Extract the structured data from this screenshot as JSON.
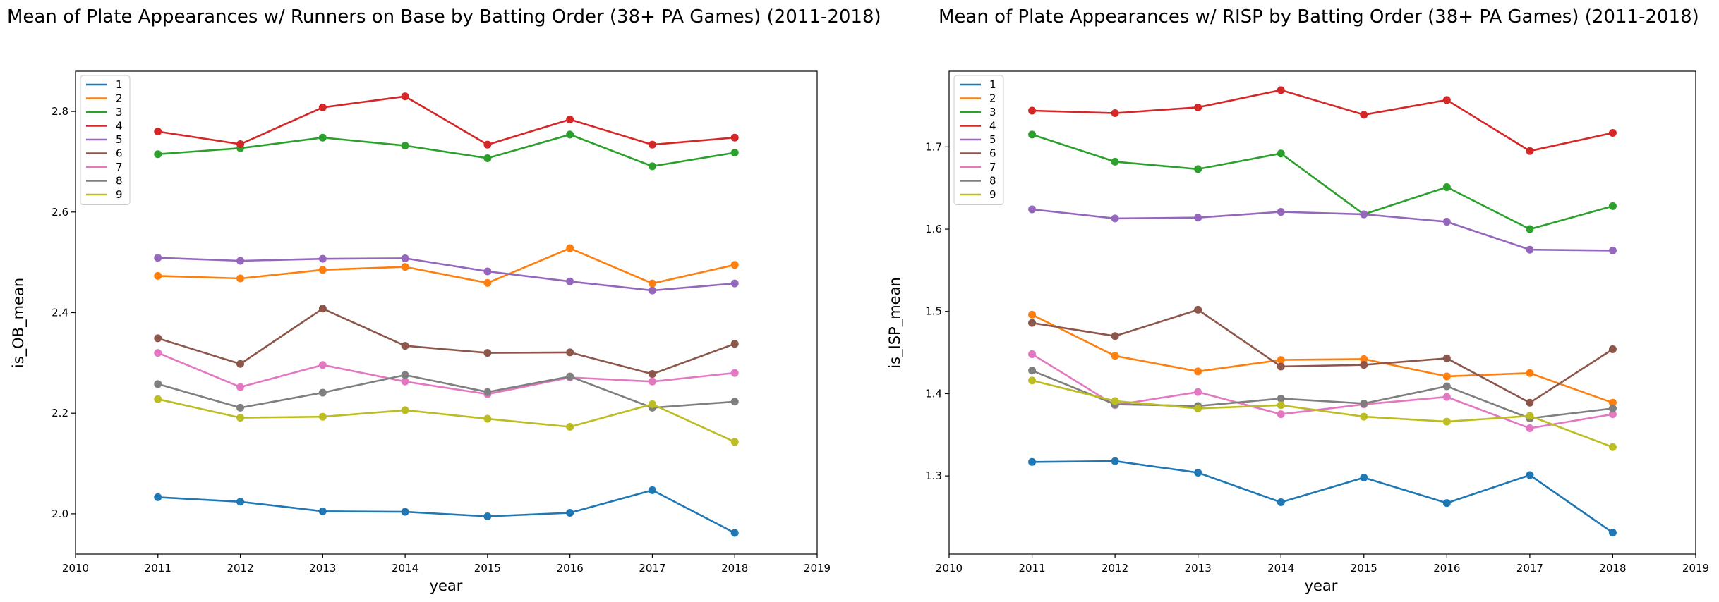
{
  "chart_data": [
    {
      "type": "line",
      "title": "Mean of Plate Appearances w/ Runners on Base by Batting Order (38+ PA Games) (2011-2018)",
      "xlabel": "year",
      "ylabel": "is_OB_mean",
      "xlim": [
        2010,
        2019
      ],
      "ylim": [
        1.92,
        2.88
      ],
      "xticks": [
        2010,
        2011,
        2012,
        2013,
        2014,
        2015,
        2016,
        2017,
        2018,
        2019
      ],
      "yticks": [
        "2.0",
        "2.2",
        "2.4",
        "2.6",
        "2.8"
      ],
      "yticks_values": [
        2.0,
        2.2,
        2.4,
        2.6,
        2.8
      ],
      "grid": false,
      "legend": "top-left",
      "x": [
        2011,
        2012,
        2013,
        2014,
        2015,
        2016,
        2017,
        2018
      ],
      "series": [
        {
          "name": "1",
          "color": "#1f77b4",
          "values": [
            2.033,
            2.024,
            2.005,
            2.004,
            1.995,
            2.002,
            2.047,
            1.962
          ]
        },
        {
          "name": "2",
          "color": "#ff7f0e",
          "values": [
            2.473,
            2.468,
            2.485,
            2.491,
            2.459,
            2.528,
            2.458,
            2.495
          ]
        },
        {
          "name": "3",
          "color": "#2ca02c",
          "values": [
            2.715,
            2.727,
            2.748,
            2.732,
            2.707,
            2.754,
            2.691,
            2.718
          ]
        },
        {
          "name": "4",
          "color": "#d62728",
          "values": [
            2.76,
            2.735,
            2.808,
            2.83,
            2.734,
            2.784,
            2.734,
            2.748
          ]
        },
        {
          "name": "5",
          "color": "#9467bd",
          "values": [
            2.509,
            2.503,
            2.507,
            2.508,
            2.482,
            2.462,
            2.444,
            2.458
          ]
        },
        {
          "name": "6",
          "color": "#8c564b",
          "values": [
            2.349,
            2.298,
            2.408,
            2.334,
            2.32,
            2.321,
            2.278,
            2.338
          ]
        },
        {
          "name": "7",
          "color": "#e377c2",
          "values": [
            2.32,
            2.252,
            2.296,
            2.263,
            2.238,
            2.271,
            2.263,
            2.28
          ]
        },
        {
          "name": "8",
          "color": "#7f7f7f",
          "values": [
            2.258,
            2.211,
            2.241,
            2.276,
            2.242,
            2.273,
            2.211,
            2.223
          ]
        },
        {
          "name": "9",
          "color": "#bcbd22",
          "values": [
            2.228,
            2.191,
            2.193,
            2.206,
            2.189,
            2.173,
            2.218,
            2.143
          ]
        }
      ]
    },
    {
      "type": "line",
      "title": "Mean of Plate Appearances w/ RISP by Batting Order (38+ PA Games) (2011-2018)",
      "xlabel": "year",
      "ylabel": "is_ISP_mean",
      "xlim": [
        2010,
        2019
      ],
      "ylim": [
        1.205,
        1.792
      ],
      "xticks": [
        2010,
        2011,
        2012,
        2013,
        2014,
        2015,
        2016,
        2017,
        2018,
        2019
      ],
      "yticks": [
        "1.3",
        "1.4",
        "1.5",
        "1.6",
        "1.7"
      ],
      "yticks_values": [
        1.3,
        1.4,
        1.5,
        1.6,
        1.7
      ],
      "grid": false,
      "legend": "top-left",
      "x": [
        2011,
        2012,
        2013,
        2014,
        2015,
        2016,
        2017,
        2018
      ],
      "series": [
        {
          "name": "1",
          "color": "#1f77b4",
          "values": [
            1.317,
            1.318,
            1.304,
            1.268,
            1.298,
            1.267,
            1.301,
            1.231
          ]
        },
        {
          "name": "2",
          "color": "#ff7f0e",
          "values": [
            1.496,
            1.446,
            1.427,
            1.441,
            1.442,
            1.421,
            1.425,
            1.389
          ]
        },
        {
          "name": "3",
          "color": "#2ca02c",
          "values": [
            1.715,
            1.682,
            1.673,
            1.692,
            1.618,
            1.651,
            1.6,
            1.628
          ]
        },
        {
          "name": "4",
          "color": "#d62728",
          "values": [
            1.744,
            1.741,
            1.748,
            1.769,
            1.739,
            1.757,
            1.695,
            1.717
          ]
        },
        {
          "name": "5",
          "color": "#9467bd",
          "values": [
            1.624,
            1.613,
            1.614,
            1.621,
            1.618,
            1.609,
            1.575,
            1.574
          ]
        },
        {
          "name": "6",
          "color": "#8c564b",
          "values": [
            1.486,
            1.47,
            1.502,
            1.433,
            1.435,
            1.443,
            1.389,
            1.454
          ]
        },
        {
          "name": "7",
          "color": "#e377c2",
          "values": [
            1.448,
            1.386,
            1.402,
            1.375,
            1.387,
            1.396,
            1.358,
            1.375
          ]
        },
        {
          "name": "8",
          "color": "#7f7f7f",
          "values": [
            1.428,
            1.387,
            1.385,
            1.394,
            1.388,
            1.409,
            1.37,
            1.382
          ]
        },
        {
          "name": "9",
          "color": "#bcbd22",
          "values": [
            1.416,
            1.391,
            1.382,
            1.386,
            1.372,
            1.366,
            1.373,
            1.335
          ]
        }
      ]
    }
  ]
}
